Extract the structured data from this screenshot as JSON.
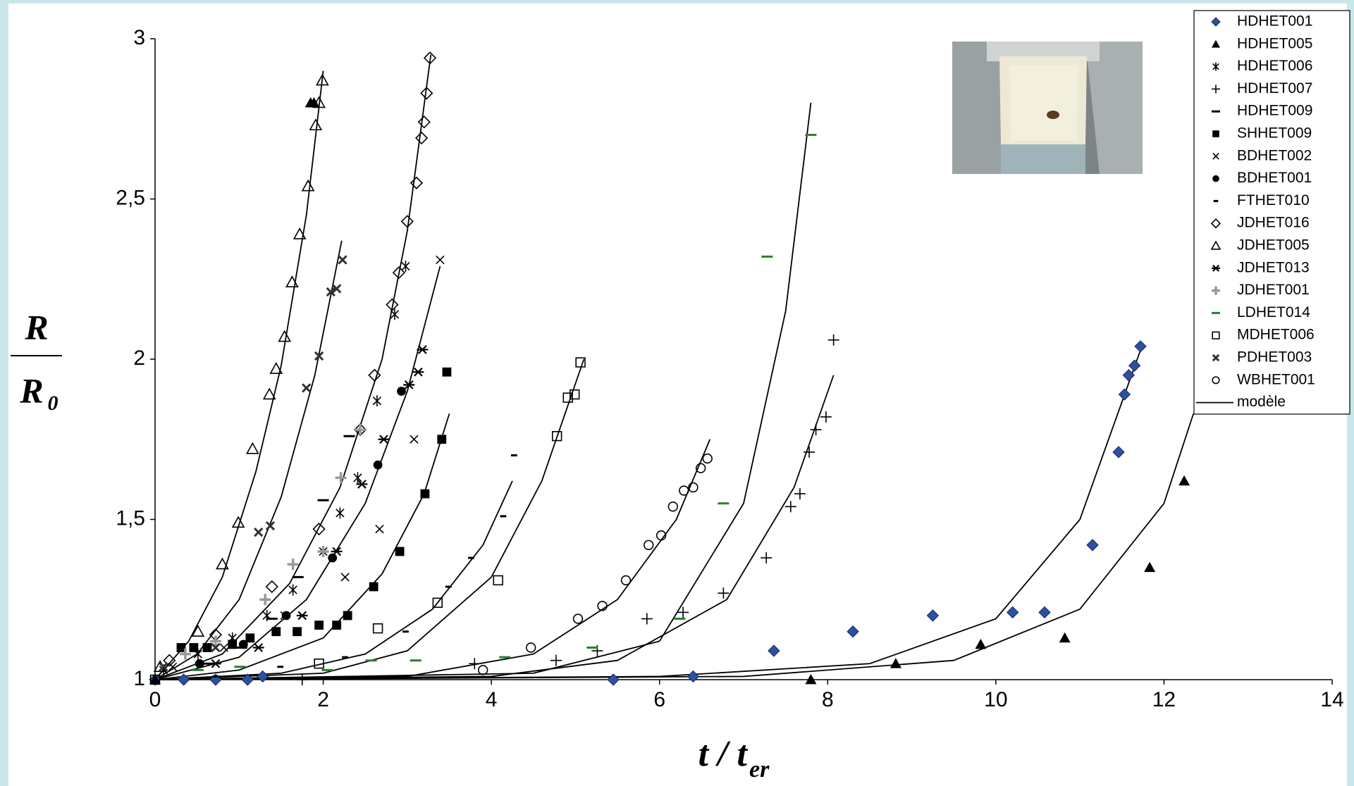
{
  "chart_data": {
    "type": "scatter",
    "x_label": {
      "text": "t / t",
      "subscript": "er"
    },
    "y_label": {
      "numerator": "R",
      "denominator": "R",
      "denominator_subscript": "0"
    },
    "xlim": [
      0,
      14
    ],
    "ylim": [
      1,
      3
    ],
    "xticks": [
      0,
      2,
      4,
      6,
      8,
      10,
      12,
      14
    ],
    "yticks": [
      1,
      {
        "value": 1.5,
        "label": "1,5"
      },
      2,
      {
        "value": 2.5,
        "label": "2,5"
      },
      3
    ],
    "legend": "upper right",
    "series": [
      {
        "name": "HDHET001",
        "marker": "diamond",
        "color": "#2e4fa3",
        "x": [
          0,
          0.34,
          0.72,
          1.1,
          1.28,
          5.45,
          6.4,
          7.36,
          8.3,
          9.25,
          10.2,
          10.58,
          11.15,
          11.46,
          11.53,
          11.58,
          11.65,
          11.72
        ],
        "y": [
          1,
          1,
          1,
          1,
          1.01,
          1,
          1.01,
          1.09,
          1.15,
          1.2,
          1.21,
          1.21,
          1.42,
          1.71,
          1.89,
          1.95,
          1.98,
          2.04
        ]
      },
      {
        "name": "HDHET005",
        "marker": "triangle",
        "color": "#000000",
        "x": [
          0,
          7.8,
          8.81,
          9.82,
          10.82,
          11.83,
          12.24,
          1.85,
          1.89
        ],
        "y": [
          1,
          1,
          1.05,
          1.11,
          1.13,
          1.35,
          1.62,
          2.8,
          2.8
        ]
      },
      {
        "name": "HDHET006",
        "marker": "asterisk",
        "color": "#000000",
        "x": [
          0.1,
          0.51,
          0.92,
          1.33,
          1.64,
          2.0,
          2.2,
          2.41,
          2.64,
          2.85,
          2.98
        ],
        "y": [
          1.03,
          1.08,
          1.13,
          1.2,
          1.28,
          1.4,
          1.52,
          1.63,
          1.87,
          2.14,
          2.29
        ]
      },
      {
        "name": "HDHET007",
        "marker": "plus",
        "color": "#000000",
        "x": [
          1.75,
          3.8,
          4.77,
          5.26,
          5.85,
          6.28,
          6.76,
          7.27,
          7.56,
          7.67,
          7.78,
          7.86,
          7.98,
          8.07
        ],
        "y": [
          1,
          1.05,
          1.06,
          1.09,
          1.19,
          1.21,
          1.27,
          1.38,
          1.54,
          1.58,
          1.71,
          1.78,
          1.82,
          2.06
        ]
      },
      {
        "name": "HDHET009",
        "marker": "dash",
        "color": "#000000",
        "x": [
          0.62,
          1.03,
          1.39,
          1.7,
          2.0,
          2.31
        ],
        "y": [
          1.05,
          1.1,
          1.19,
          1.32,
          1.56,
          1.76
        ]
      },
      {
        "name": "SHHET009",
        "marker": "square",
        "color": "#000000",
        "x": [
          0.31,
          0.46,
          0.62,
          0.92,
          1.13,
          1.44,
          1.69,
          1.95,
          2.16,
          2.29,
          2.6,
          2.91,
          3.21,
          3.41,
          3.47
        ],
        "y": [
          1.1,
          1.1,
          1.1,
          1.11,
          1.13,
          1.15,
          1.15,
          1.17,
          1.17,
          1.2,
          1.29,
          1.4,
          1.58,
          1.75,
          1.96
        ]
      },
      {
        "name": "BDHET002",
        "marker": "x",
        "color": "#000000",
        "x": [
          0.21,
          0.82,
          1.54,
          2.26,
          2.67,
          3.08,
          3.39
        ],
        "y": [
          1.04,
          1.1,
          1.2,
          1.32,
          1.47,
          1.75,
          2.31
        ]
      },
      {
        "name": "BDHET001",
        "marker": "circle",
        "color": "#000000",
        "x": [
          0.53,
          1.05,
          1.56,
          2.11,
          2.65,
          2.93
        ],
        "y": [
          1.05,
          1.11,
          1.2,
          1.38,
          1.67,
          1.9
        ]
      },
      {
        "name": "FTHET010",
        "marker": "dash-small",
        "color": "#000000",
        "x": [
          0.72,
          1.49,
          2.26,
          2.98,
          3.49,
          3.76,
          4.14,
          4.27
        ],
        "y": [
          1.01,
          1.04,
          1.07,
          1.15,
          1.29,
          1.38,
          1.51,
          1.7
        ]
      },
      {
        "name": "JDHET016",
        "marker": "diamond-open",
        "color": "#000000",
        "x": [
          0.17,
          0.72,
          1.39,
          1.95,
          2.44,
          2.61,
          2.82,
          2.9,
          3.0,
          3.11,
          3.17,
          3.2,
          3.23,
          3.27
        ],
        "y": [
          1.06,
          1.14,
          1.29,
          1.47,
          1.78,
          1.95,
          2.17,
          2.27,
          2.43,
          2.55,
          2.69,
          2.74,
          2.83,
          2.94
        ]
      },
      {
        "name": "JDHET005",
        "marker": "triangle-open",
        "color": "#000000",
        "x": [
          0.06,
          0.51,
          0.8,
          0.99,
          1.16,
          1.36,
          1.44,
          1.54,
          1.63,
          1.72,
          1.82,
          1.91,
          1.95,
          1.99
        ],
        "y": [
          1.04,
          1.15,
          1.36,
          1.49,
          1.72,
          1.89,
          1.97,
          2.07,
          2.24,
          2.39,
          2.54,
          2.73,
          2.8,
          2.87
        ]
      },
      {
        "name": "JDHET013",
        "marker": "star",
        "color": "#000000",
        "x": [
          0.72,
          1.23,
          1.75,
          2.16,
          2.46,
          2.72,
          3.02,
          3.13,
          3.18
        ],
        "y": [
          1.05,
          1.1,
          1.2,
          1.4,
          1.61,
          1.75,
          1.92,
          1.96,
          2.03
        ]
      },
      {
        "name": "JDHET001",
        "marker": "plus-bold",
        "color": "#999999",
        "x": [
          0.36,
          0.72,
          1.31,
          1.64,
          2.0,
          2.21,
          2.44
        ],
        "y": [
          1.08,
          1.12,
          1.25,
          1.36,
          1.4,
          1.63,
          1.78
        ]
      },
      {
        "name": "LDHET014",
        "marker": "dash",
        "color": "#2e7d32",
        "x": [
          0.51,
          1.01,
          2.05,
          2.57,
          3.1,
          4.16,
          5.2,
          6.24,
          6.76,
          7.28,
          7.8
        ],
        "y": [
          1.03,
          1.04,
          1.03,
          1.06,
          1.06,
          1.07,
          1.1,
          1.19,
          1.55,
          2.32,
          2.7
        ]
      },
      {
        "name": "MDHET006",
        "marker": "square-open",
        "color": "#000000",
        "x": [
          0,
          1.95,
          2.65,
          3.36,
          4.08,
          4.78,
          4.91,
          4.99,
          5.06
        ],
        "y": [
          1,
          1.05,
          1.16,
          1.24,
          1.31,
          1.76,
          1.88,
          1.89,
          1.99
        ]
      },
      {
        "name": "PDHET003",
        "marker": "x-bold",
        "color": "#333333",
        "x": [
          0.1,
          0.72,
          1.23,
          1.37,
          1.8,
          1.95,
          2.09,
          2.16,
          2.23
        ],
        "y": [
          1.04,
          1.1,
          1.46,
          1.48,
          1.91,
          2.01,
          2.21,
          2.22,
          2.31
        ]
      },
      {
        "name": "WBHET001",
        "marker": "circle-open",
        "color": "#000000",
        "x": [
          3.9,
          4.47,
          5.03,
          5.32,
          5.6,
          5.87,
          6.02,
          6.16,
          6.29,
          6.4,
          6.49,
          6.57
        ],
        "y": [
          1.03,
          1.1,
          1.19,
          1.23,
          1.31,
          1.42,
          1.45,
          1.54,
          1.59,
          1.6,
          1.66,
          1.69
        ]
      }
    ],
    "model": {
      "name": "modèle",
      "color": "#000000",
      "curves": [
        {
          "x": [
            0,
            0.4,
            0.8,
            1.2,
            1.5,
            1.8,
            2.0
          ],
          "y": [
            1,
            1.12,
            1.32,
            1.65,
            1.98,
            2.45,
            2.9
          ]
        },
        {
          "x": [
            0,
            0.5,
            1.0,
            1.5,
            1.9,
            2.22
          ],
          "y": [
            1,
            1.08,
            1.25,
            1.57,
            1.95,
            2.37
          ]
        },
        {
          "x": [
            0,
            0.8,
            1.6,
            2.2,
            2.7,
            3.0,
            3.28
          ],
          "y": [
            1,
            1.08,
            1.3,
            1.6,
            2.0,
            2.4,
            2.95
          ]
        },
        {
          "x": [
            0,
            1,
            1.8,
            2.5,
            3.0,
            3.39
          ],
          "y": [
            1,
            1.07,
            1.25,
            1.55,
            1.9,
            2.29
          ]
        },
        {
          "x": [
            0,
            1,
            2,
            2.7,
            3.2,
            3.5
          ],
          "y": [
            1,
            1.03,
            1.13,
            1.33,
            1.58,
            1.83
          ]
        },
        {
          "x": [
            0,
            1.5,
            2.5,
            3.3,
            3.9,
            4.25
          ],
          "y": [
            1,
            1.02,
            1.08,
            1.22,
            1.42,
            1.62
          ]
        },
        {
          "x": [
            0,
            2,
            3,
            4,
            4.6,
            5.1
          ],
          "y": [
            1,
            1.02,
            1.09,
            1.32,
            1.62,
            2.0
          ]
        },
        {
          "x": [
            0,
            3,
            4.5,
            5.5,
            6.2,
            6.6
          ],
          "y": [
            1,
            1.01,
            1.08,
            1.25,
            1.5,
            1.75
          ]
        },
        {
          "x": [
            0,
            4,
            5.5,
            6.8,
            7.6,
            8.07
          ],
          "y": [
            1,
            1.01,
            1.06,
            1.25,
            1.6,
            1.95
          ]
        },
        {
          "x": [
            0,
            4.5,
            6,
            7,
            7.5,
            7.8
          ],
          "y": [
            1,
            1.02,
            1.12,
            1.55,
            2.15,
            2.8
          ]
        },
        {
          "x": [
            0,
            6,
            8.5,
            10,
            11,
            11.75
          ],
          "y": [
            1,
            1.01,
            1.05,
            1.19,
            1.5,
            2.05
          ]
        },
        {
          "x": [
            0,
            7,
            9.5,
            11,
            12,
            12.35
          ],
          "y": [
            1,
            1.01,
            1.06,
            1.22,
            1.55,
            1.83
          ]
        }
      ]
    }
  }
}
